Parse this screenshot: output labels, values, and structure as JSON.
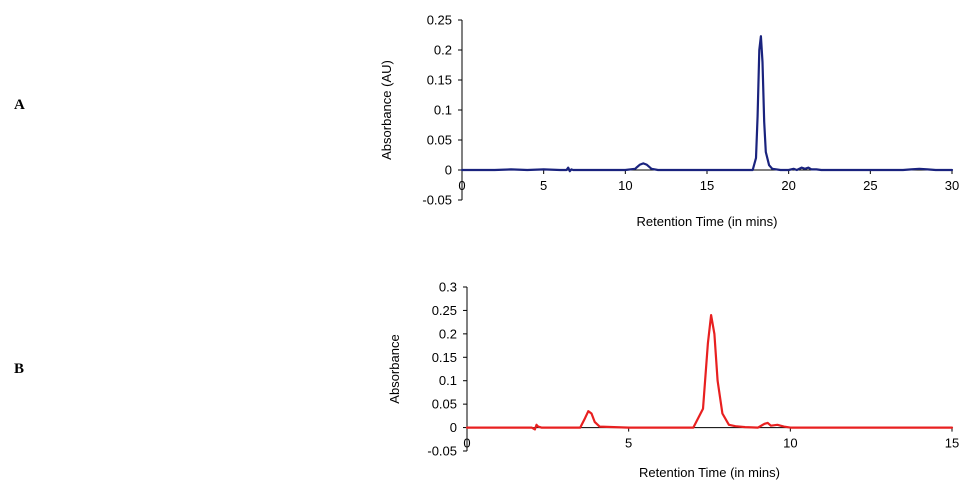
{
  "panels": [
    {
      "label": "A"
    },
    {
      "label": "B"
    }
  ],
  "chart_data": [
    {
      "type": "line",
      "xlabel": "Retention Time (in mins)",
      "ylabel": "Absorbance (AU)",
      "xlim": [
        0,
        30
      ],
      "ylim": [
        -0.05,
        0.25
      ],
      "xticks": [
        0,
        5,
        10,
        15,
        20,
        25,
        30
      ],
      "yticks": [
        -0.05,
        0,
        0.05,
        0.1,
        0.15,
        0.2,
        0.25
      ],
      "grid": false,
      "color": "#1a237e",
      "series": [
        {
          "x": [
            0,
            2,
            3,
            4,
            5,
            6,
            6.4,
            6.5,
            6.6,
            6.7,
            6.8,
            7,
            8,
            9,
            10,
            10.6,
            10.9,
            11.1,
            11.3,
            11.6,
            12,
            13,
            14,
            15,
            16,
            17,
            17.8,
            18.0,
            18.1,
            18.2,
            18.3,
            18.4,
            18.5,
            18.6,
            18.8,
            19.0,
            19.5,
            20,
            20.3,
            20.5,
            20.8,
            21.0,
            21.2,
            21.4,
            21.7,
            22,
            23,
            24,
            25,
            26,
            27,
            27.5,
            28,
            28.5,
            29,
            30
          ],
          "y": [
            0,
            0,
            0.001,
            0,
            0.001,
            0,
            0,
            0.004,
            -0.002,
            0.001,
            0,
            0,
            0,
            0,
            0,
            0.002,
            0.009,
            0.011,
            0.009,
            0.002,
            0,
            0,
            0,
            0,
            0,
            0,
            0,
            0.02,
            0.09,
            0.2,
            0.223,
            0.18,
            0.08,
            0.03,
            0.008,
            0.002,
            0,
            0,
            0.002,
            0,
            0.004,
            0.002,
            0.004,
            0.001,
            0.001,
            0,
            0,
            0,
            0,
            0,
            0,
            0.001,
            0.002,
            0.001,
            0,
            0
          ]
        }
      ]
    },
    {
      "type": "line",
      "xlabel": "Retention Time (in mins)",
      "ylabel": "Absorbance",
      "xlim": [
        0,
        15
      ],
      "ylim": [
        -0.05,
        0.3
      ],
      "xticks": [
        0,
        5,
        10,
        15
      ],
      "yticks": [
        -0.05,
        0,
        0.05,
        0.1,
        0.15,
        0.2,
        0.25,
        0.3
      ],
      "grid": false,
      "color": "#e82020",
      "series": [
        {
          "x": [
            0,
            1,
            2.0,
            2.1,
            2.15,
            2.2,
            2.3,
            3,
            3.5,
            3.65,
            3.75,
            3.85,
            3.95,
            4.1,
            5,
            6,
            7,
            7.3,
            7.45,
            7.55,
            7.65,
            7.75,
            7.9,
            8.1,
            8.3,
            8.6,
            9.0,
            9.2,
            9.3,
            9.4,
            9.6,
            9.7,
            9.8,
            10,
            11,
            12,
            13,
            14,
            15
          ],
          "y": [
            0,
            0,
            0,
            -0.004,
            0.006,
            0.002,
            0,
            0,
            0,
            0.02,
            0.035,
            0.03,
            0.012,
            0.002,
            0,
            0,
            0,
            0.04,
            0.18,
            0.24,
            0.2,
            0.1,
            0.03,
            0.006,
            0.003,
            0.001,
            0,
            0.008,
            0.01,
            0.004,
            0.006,
            0.004,
            0.002,
            0,
            0,
            0,
            0,
            0,
            0
          ]
        }
      ]
    }
  ]
}
